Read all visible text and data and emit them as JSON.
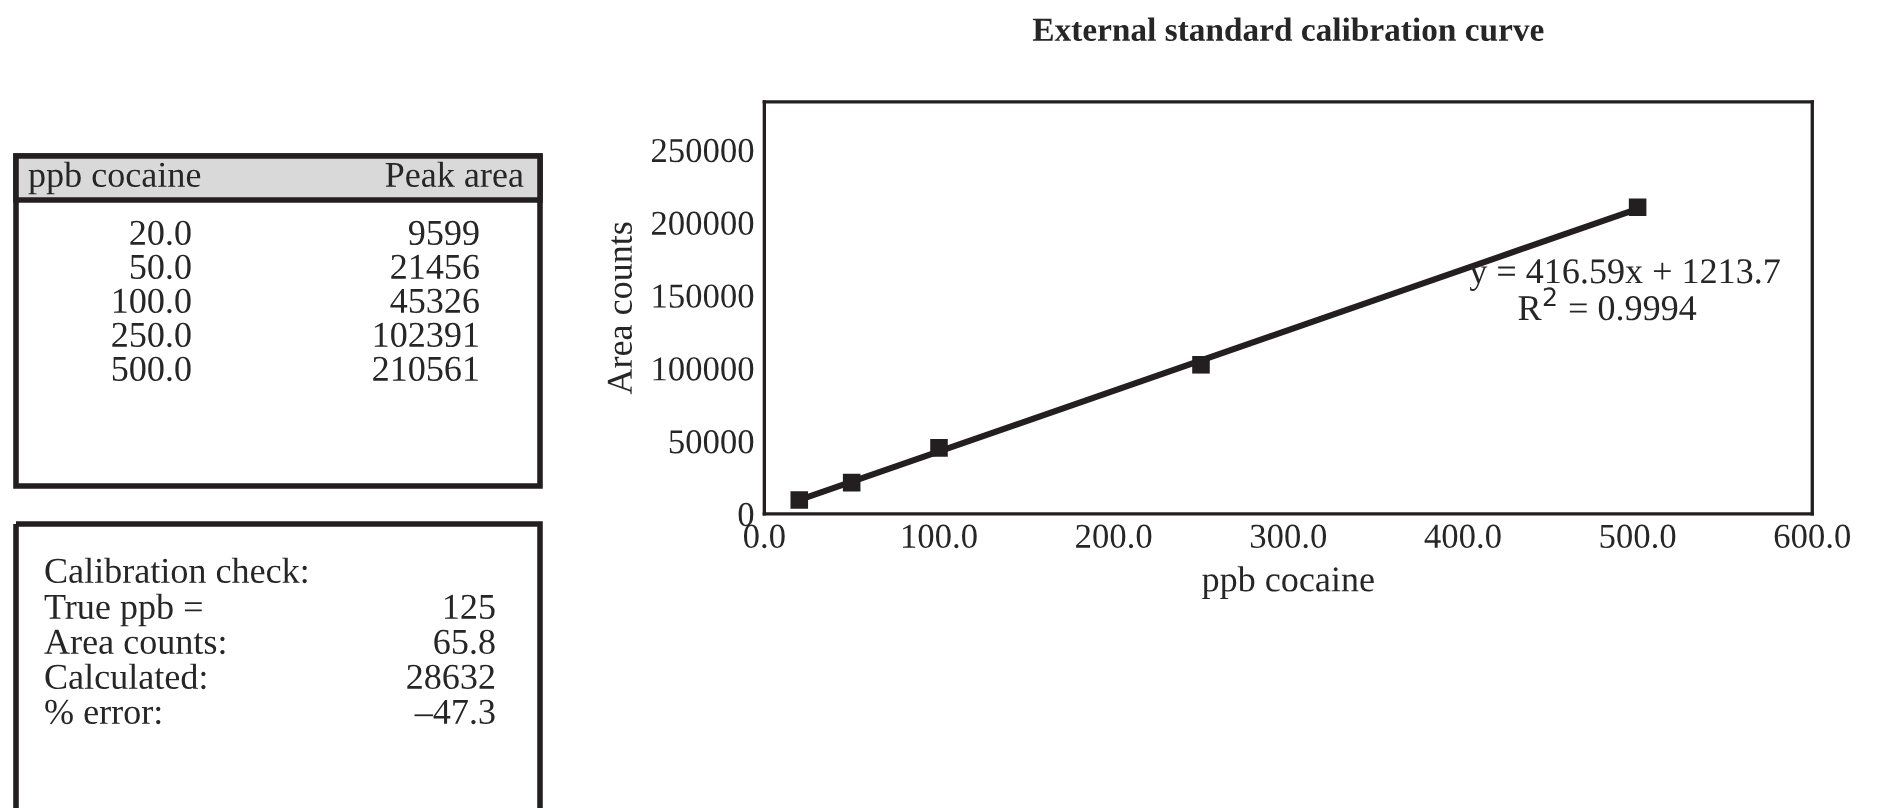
{
  "chart_data": [
    {
      "type": "other",
      "annotations": [
        "ppb cocaine",
        "Peak area",
        "20.0",
        "9599",
        "50.0",
        "21456",
        "100.0",
        "45326",
        "250.0",
        "102391",
        "500.0",
        "210561",
        "Calibration check:",
        "True ppb =",
        "125",
        "Area counts:",
        "65.8",
        "Calculated:",
        "28632",
        "% error:",
        "–47.3"
      ]
    },
    {
      "type": "scatter",
      "title": "External standard calibration curve",
      "xlabel": "ppb cocaine",
      "ylabel": "Area counts",
      "x": [
        20.0,
        50.0,
        100.0,
        250.0,
        500.0
      ],
      "series": [
        {
          "color": "#231f20",
          "marker": "square",
          "values": [
            9599,
            21456,
            45326,
            102391,
            210561
          ]
        },
        {
          "type": "line",
          "color": "#231f20",
          "x": [
            18,
            500
          ],
          "values": [
            8700,
            209500
          ]
        }
      ],
      "xlim": [
        0,
        600
      ],
      "xticks": [
        {
          "value": 0,
          "label": "0.0"
        },
        {
          "value": 100,
          "label": "100.0"
        },
        {
          "value": 200,
          "label": "200.0"
        },
        {
          "value": 300,
          "label": "300.0"
        },
        {
          "value": 400,
          "label": "400.0"
        },
        {
          "value": 500,
          "label": "500.0"
        },
        {
          "value": 600,
          "label": "600.0"
        }
      ],
      "ylim": [
        0,
        283000
      ],
      "yticks": [
        0,
        50000,
        100000,
        150000,
        200000,
        250000
      ],
      "annotations": [
        "y = 416.59x + 1213.7",
        "R$^{2}$ = 0.9994"
      ]
    }
  ]
}
